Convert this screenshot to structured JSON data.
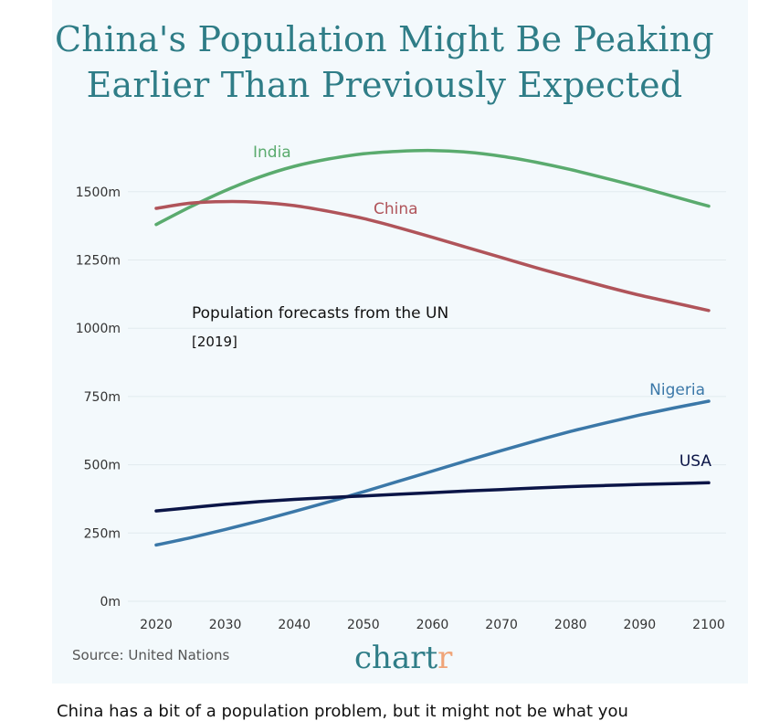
{
  "title_line1": "China's Population Might Be Peaking",
  "title_line2": "Earlier Than Previously Expected",
  "subtitle": "Population forecasts from the UN",
  "subtitle_year": "[2019]",
  "source": "Source: United Nations",
  "brand": {
    "main": "chart",
    "accent": "r"
  },
  "footer_text": "China has a bit of a population problem, but it might not be what you",
  "colors": {
    "title": "#2f7d87",
    "india": "#5aab6e",
    "china": "#b0545a",
    "nigeria": "#3b78a8",
    "usa": "#0b1547",
    "background": "#f3f9fc"
  },
  "chart_data": {
    "type": "line",
    "title": "China's Population Might Be Peaking Earlier Than Previously Expected",
    "xlabel": "",
    "ylabel": "",
    "x": [
      2020,
      2025,
      2030,
      2035,
      2040,
      2045,
      2050,
      2055,
      2060,
      2065,
      2070,
      2075,
      2080,
      2085,
      2090,
      2095,
      2100
    ],
    "xticks": [
      "2020",
      "2030",
      "2040",
      "2050",
      "2060",
      "2070",
      "2080",
      "2090",
      "2100"
    ],
    "yticks": [
      "0m",
      "250m",
      "500m",
      "750m",
      "1000m",
      "1250m",
      "1500m"
    ],
    "ylim": [
      0,
      1650
    ],
    "series": [
      {
        "name": "India",
        "values": [
          1380,
          1445,
          1504,
          1554,
          1593,
          1620,
          1639,
          1648,
          1651,
          1645,
          1630,
          1608,
          1581,
          1550,
          1517,
          1482,
          1447
        ]
      },
      {
        "name": "China",
        "values": [
          1439,
          1458,
          1464,
          1461,
          1449,
          1428,
          1402,
          1369,
          1333,
          1296,
          1259,
          1222,
          1187,
          1153,
          1121,
          1093,
          1065
        ]
      },
      {
        "name": "Nigeria",
        "values": [
          206,
          233,
          263,
          295,
          329,
          364,
          401,
          439,
          477,
          515,
          552,
          588,
          622,
          653,
          682,
          708,
          733
        ]
      },
      {
        "name": "USA",
        "values": [
          331,
          343,
          355,
          365,
          373,
          380,
          386,
          392,
          398,
          404,
          409,
          415,
          420,
          424,
          428,
          431,
          434
        ]
      }
    ]
  }
}
